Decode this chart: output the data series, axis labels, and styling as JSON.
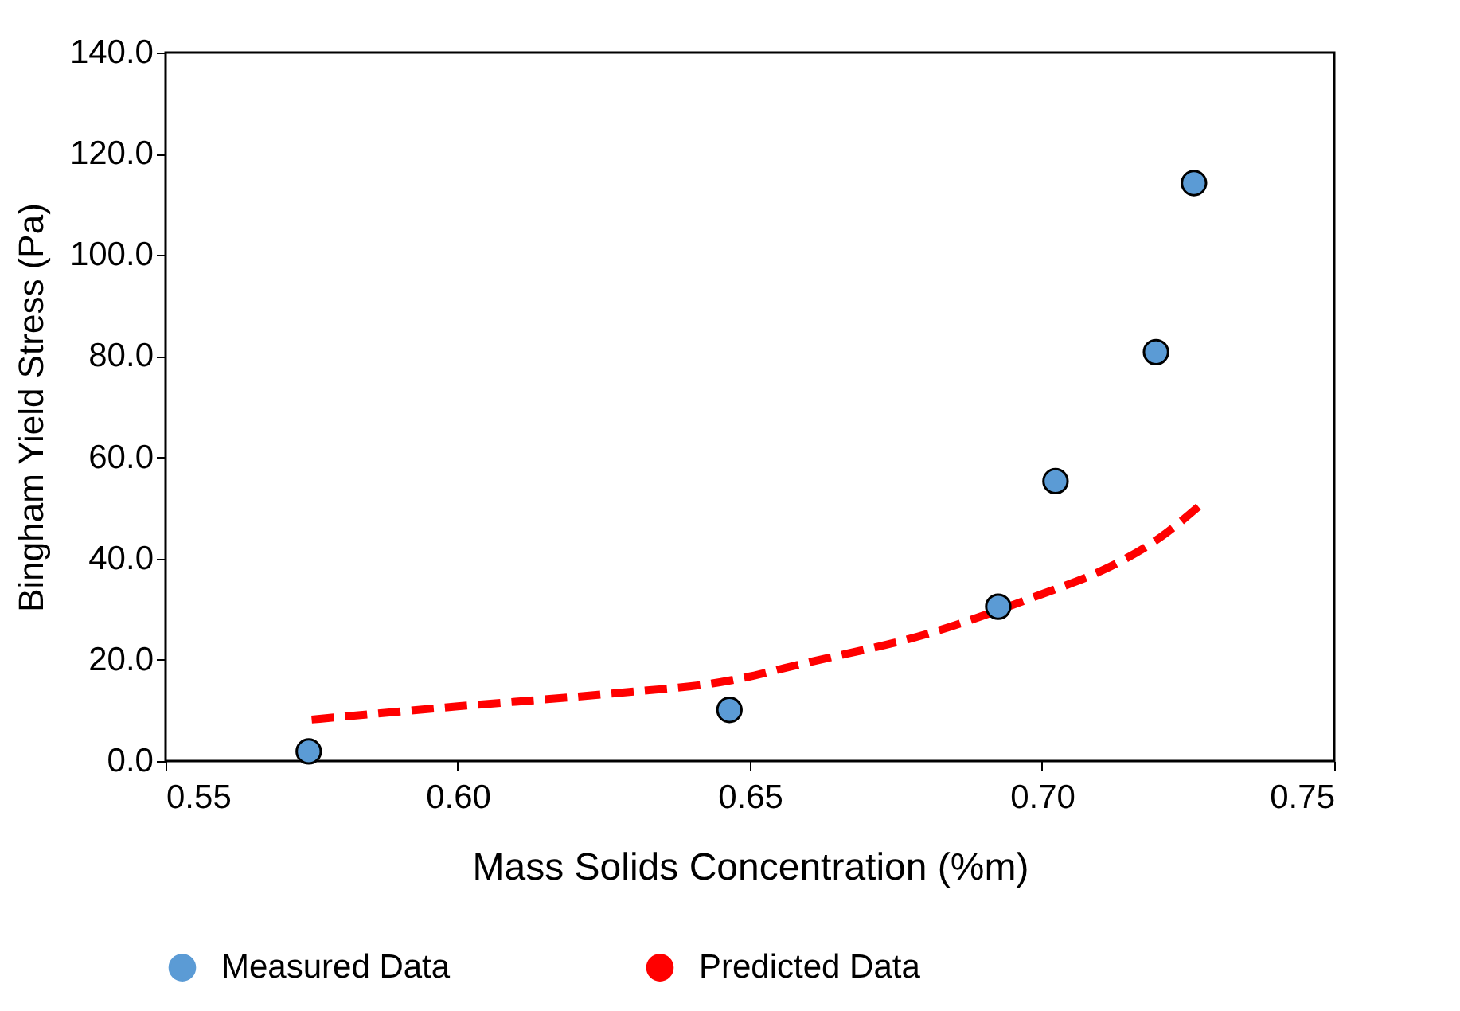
{
  "chart_data": {
    "type": "scatter",
    "xlabel": "Mass Solids Concentration (%m)",
    "ylabel": "Bingham Yield Stress (Pa)",
    "xlim": [
      0.55,
      0.75
    ],
    "xticks": [
      0.55,
      {
        "value": 0.6,
        "label": "0.60"
      },
      0.65,
      {
        "value": 0.7,
        "label": "0.70"
      },
      0.75
    ],
    "ylim": [
      0,
      140
    ],
    "yticks": [
      {
        "value": 0,
        "label": "0.0"
      },
      {
        "value": 20,
        "label": "20.0"
      },
      {
        "value": 40,
        "label": "40.0"
      },
      {
        "value": 60,
        "label": "60.0"
      },
      {
        "value": 80,
        "label": "80.0"
      },
      {
        "value": 100,
        "label": "100.0"
      },
      {
        "value": 120,
        "label": "120.0"
      },
      {
        "value": 140,
        "label": "140.0"
      }
    ],
    "grid": false,
    "legend": "bottom",
    "series": [
      {
        "name": "Measured Data",
        "marker": "circle",
        "color": "#5b9bd5",
        "x": [
          0.5745,
          0.6465,
          0.6925,
          0.7023,
          0.7195,
          0.726
        ],
        "values": [
          1.9,
          10.1,
          30.5,
          55.3,
          80.8,
          114.2
        ]
      },
      {
        "name": "Predicted Data",
        "type": "line",
        "line_style": "dashed",
        "color": "#ff0000",
        "x": [
          0.575,
          0.6,
          0.625,
          0.647,
          0.66,
          0.68,
          0.7,
          0.71,
          0.72,
          0.727
        ],
        "values": [
          8.2,
          10.8,
          13.2,
          16,
          19.5,
          25,
          33,
          37.5,
          44,
          50.5
        ]
      }
    ]
  }
}
